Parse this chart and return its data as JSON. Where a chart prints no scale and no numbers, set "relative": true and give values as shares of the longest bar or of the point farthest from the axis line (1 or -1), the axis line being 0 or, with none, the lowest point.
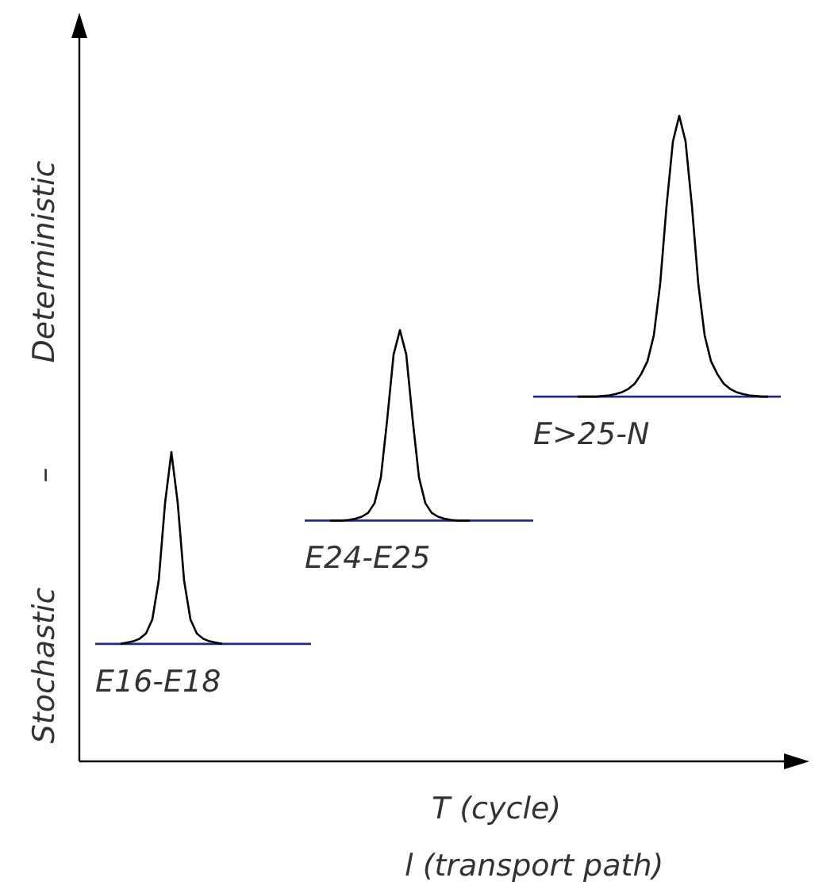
{
  "chart_data": {
    "type": "line",
    "relative": true,
    "xlabel": "T (cycle)\nl (transport path)",
    "ylabel": "Stochastic – Deterministic",
    "marker": "none",
    "line_style": "solid",
    "categories": [
      null,
      null,
      null,
      null,
      null,
      null,
      null,
      null,
      null,
      null,
      null,
      null,
      null,
      null,
      null,
      null,
      null,
      null,
      null,
      null,
      null,
      null,
      null,
      null,
      null,
      null,
      null,
      null,
      null,
      null,
      null,
      null,
      null,
      null,
      null,
      null,
      null,
      null,
      null,
      null,
      null,
      null,
      null,
      null,
      null,
      null,
      null,
      null,
      null,
      null,
      null,
      null,
      null,
      null,
      null,
      null,
      null,
      null,
      null,
      null,
      null,
      null,
      null,
      null,
      null,
      null,
      null,
      null,
      null,
      null,
      null,
      null,
      null,
      null,
      null,
      null,
      null,
      null,
      null,
      null,
      null,
      null,
      null,
      null,
      null,
      null,
      null,
      null,
      null,
      null,
      null,
      null,
      null,
      null,
      null,
      null,
      null,
      null,
      null,
      null,
      null,
      null,
      null,
      null,
      null,
      null,
      null,
      null,
      null
    ],
    "series": [
      {
        "color": "#1f2a8c",
        "values": [
          0.182,
          0.182,
          0.182,
          0.182,
          0.182,
          0.182,
          0.182,
          0.182,
          0.182,
          0.182,
          0.182,
          0.182,
          0.182,
          0.182,
          0.182,
          0.182,
          0.182,
          0.182,
          0.182,
          0.182,
          0.182,
          0.182,
          0.182,
          0.182,
          0.182,
          0.182,
          0.182,
          0.182,
          0.182,
          0.182,
          0.182,
          0.182,
          0.182,
          0.182,
          0.182,
          null,
          null,
          null,
          null,
          null,
          null,
          null,
          null,
          null,
          null,
          null,
          null,
          null,
          null,
          null,
          null,
          null,
          null,
          null,
          null,
          null,
          null,
          null,
          null,
          null,
          null,
          null,
          null,
          null,
          null,
          null,
          null,
          null,
          null,
          null,
          null,
          null,
          null,
          null,
          null,
          null,
          null,
          null,
          null,
          null,
          null,
          null,
          null,
          null,
          null,
          null,
          null,
          null,
          null,
          null,
          null,
          null,
          null,
          null,
          null,
          null,
          null,
          null,
          null,
          null,
          null,
          null,
          null,
          null,
          null,
          null,
          null,
          null,
          null
        ]
      },
      {
        "color": "#000000",
        "values": [
          null,
          null,
          null,
          null,
          0.182,
          0.184,
          0.186,
          0.19,
          0.198,
          0.22,
          0.28,
          0.4,
          0.479,
          0.4,
          0.28,
          0.22,
          0.198,
          0.19,
          0.186,
          0.184,
          0.182,
          null,
          null,
          null,
          null,
          null,
          null,
          null,
          null,
          null,
          null,
          null,
          null,
          null,
          null,
          null,
          null,
          null,
          null,
          null,
          null,
          null,
          null,
          null,
          null,
          null,
          null,
          null,
          null,
          null,
          null,
          null,
          null,
          null,
          null,
          null,
          null,
          null,
          null,
          null,
          null,
          null,
          null,
          null,
          null,
          null,
          null,
          null,
          null,
          null,
          null,
          null,
          null,
          null,
          null,
          null,
          null,
          null,
          null,
          null,
          null,
          null,
          null,
          null,
          null,
          null,
          null,
          null,
          null,
          null,
          null,
          null,
          null,
          null,
          null,
          null,
          null,
          null,
          null,
          null,
          null,
          null,
          null,
          null,
          null,
          null,
          null,
          null,
          null
        ]
      },
      {
        "color": "#1f2a8c",
        "values": [
          null,
          null,
          null,
          null,
          null,
          null,
          null,
          null,
          null,
          null,
          null,
          null,
          null,
          null,
          null,
          null,
          null,
          null,
          null,
          null,
          null,
          null,
          null,
          null,
          null,
          null,
          null,
          null,
          null,
          null,
          null,
          null,
          null,
          0.373,
          0.373,
          0.373,
          0.373,
          0.373,
          0.373,
          0.373,
          0.373,
          0.373,
          0.373,
          0.373,
          0.373,
          0.373,
          0.373,
          0.373,
          0.373,
          0.373,
          0.373,
          0.373,
          0.373,
          0.373,
          0.373,
          0.373,
          0.373,
          0.373,
          0.373,
          0.373,
          0.373,
          0.373,
          0.373,
          0.373,
          0.373,
          0.373,
          0.373,
          0.373,
          0.373,
          0.373,
          null,
          null,
          null,
          null,
          null,
          null,
          null,
          null,
          null,
          null,
          null,
          null,
          null,
          null,
          null,
          null,
          null,
          null,
          null,
          null,
          null,
          null,
          null,
          null,
          null,
          null,
          null,
          null,
          null,
          null,
          null,
          null,
          null,
          null,
          null,
          null,
          null,
          null,
          null
        ]
      },
      {
        "color": "#000000",
        "values": [
          null,
          null,
          null,
          null,
          null,
          null,
          null,
          null,
          null,
          null,
          null,
          null,
          null,
          null,
          null,
          null,
          null,
          null,
          null,
          null,
          null,
          null,
          null,
          null,
          null,
          null,
          null,
          null,
          null,
          null,
          null,
          null,
          null,
          null,
          null,
          null,
          null,
          0.373,
          0.373,
          0.373,
          0.374,
          0.376,
          0.379,
          0.385,
          0.4,
          0.44,
          0.53,
          0.63,
          0.668,
          0.63,
          0.53,
          0.44,
          0.4,
          0.385,
          0.379,
          0.376,
          0.374,
          0.373,
          0.373,
          0.373,
          null,
          null,
          null,
          null,
          null,
          null,
          null,
          null,
          null,
          null,
          null,
          null,
          null,
          null,
          null,
          null,
          null,
          null,
          null,
          null,
          null,
          null,
          null,
          null,
          null,
          null,
          null,
          null,
          null,
          null,
          null,
          null,
          null,
          null,
          null,
          null,
          null,
          null,
          null,
          null,
          null,
          null,
          null,
          null,
          null,
          null,
          null,
          null,
          null
        ]
      },
      {
        "color": "#1f2a8c",
        "values": [
          null,
          null,
          null,
          null,
          null,
          null,
          null,
          null,
          null,
          null,
          null,
          null,
          null,
          null,
          null,
          null,
          null,
          null,
          null,
          null,
          null,
          null,
          null,
          null,
          null,
          null,
          null,
          null,
          null,
          null,
          null,
          null,
          null,
          null,
          null,
          null,
          null,
          null,
          null,
          null,
          null,
          null,
          null,
          null,
          null,
          null,
          null,
          null,
          null,
          null,
          null,
          null,
          null,
          null,
          null,
          null,
          null,
          null,
          null,
          null,
          null,
          null,
          null,
          null,
          null,
          null,
          null,
          null,
          null,
          0.565,
          0.565,
          0.565,
          0.565,
          0.565,
          0.565,
          0.565,
          0.565,
          0.565,
          0.565,
          0.565,
          0.565,
          0.565,
          0.565,
          0.565,
          0.565,
          0.565,
          0.565,
          0.565,
          0.565,
          0.565,
          0.565,
          0.565,
          0.565,
          0.565,
          0.565,
          0.565,
          0.565,
          0.565,
          0.565,
          0.565,
          0.565,
          0.565,
          0.565,
          0.565,
          0.565,
          0.565,
          0.565,
          0.565,
          0.565
        ]
      },
      {
        "color": "#000000",
        "values": [
          null,
          null,
          null,
          null,
          null,
          null,
          null,
          null,
          null,
          null,
          null,
          null,
          null,
          null,
          null,
          null,
          null,
          null,
          null,
          null,
          null,
          null,
          null,
          null,
          null,
          null,
          null,
          null,
          null,
          null,
          null,
          null,
          null,
          null,
          null,
          null,
          null,
          null,
          null,
          null,
          null,
          null,
          null,
          null,
          null,
          null,
          null,
          null,
          null,
          null,
          null,
          null,
          null,
          null,
          null,
          null,
          null,
          null,
          null,
          null,
          null,
          null,
          null,
          null,
          null,
          null,
          null,
          null,
          null,
          null,
          null,
          null,
          null,
          null,
          null,
          null,
          0.565,
          0.565,
          0.565,
          0.565,
          0.566,
          0.567,
          0.569,
          0.572,
          0.577,
          0.585,
          0.6,
          0.62,
          0.66,
          0.74,
          0.86,
          0.96,
          1.0,
          0.96,
          0.86,
          0.74,
          0.66,
          0.62,
          0.6,
          0.585,
          0.577,
          0.572,
          0.569,
          0.567,
          0.566,
          0.565,
          0.565,
          null,
          null
        ]
      }
    ],
    "annotations": [
      "E16-E18",
      "E24-E25",
      "E>25-N"
    ]
  }
}
